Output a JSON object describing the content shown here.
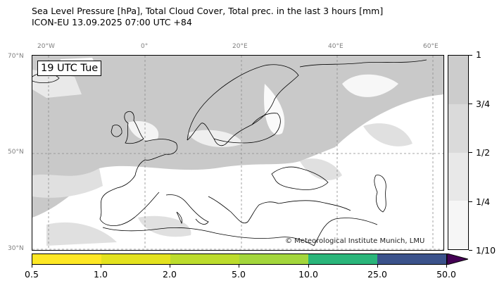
{
  "title_line1": "Sea Level Pressure [hPa], Total Cloud Cover, Total prec. in the last 3 hours [mm]",
  "title_line2": "ICON-EU 13.09.2025 07:00 UTC +84",
  "map": {
    "time_label": "19 UTC Tue",
    "credit": "© Meteorological Institute Munich, LMU",
    "lon_labels": [
      "20°W",
      "0°",
      "20°E",
      "40°E",
      "60°E"
    ],
    "lat_labels": [
      "70°N",
      "50°N",
      "30°N"
    ],
    "colors": {
      "cloud_background": "#c9c9c9",
      "clear_sky": "#ffffff",
      "coastline": "#000000",
      "grid": "#8a8a8a"
    }
  },
  "cloud_legend": {
    "labels": [
      "1",
      "3/4",
      "1/2",
      "1/4",
      "1/10"
    ],
    "colors": [
      "#cccccc",
      "#dadada",
      "#e8e8e8",
      "#f6f6f6"
    ]
  },
  "precip_legend": {
    "labels": [
      "0.5",
      "1.0",
      "2.0",
      "5.0",
      "10.0",
      "25.0",
      "50.0"
    ],
    "colors": [
      "#fde725",
      "#e3e21f",
      "#bcdc2d",
      "#a3d63c",
      "#2ab57a",
      "#3b528b"
    ],
    "extend_color": "#440154"
  }
}
